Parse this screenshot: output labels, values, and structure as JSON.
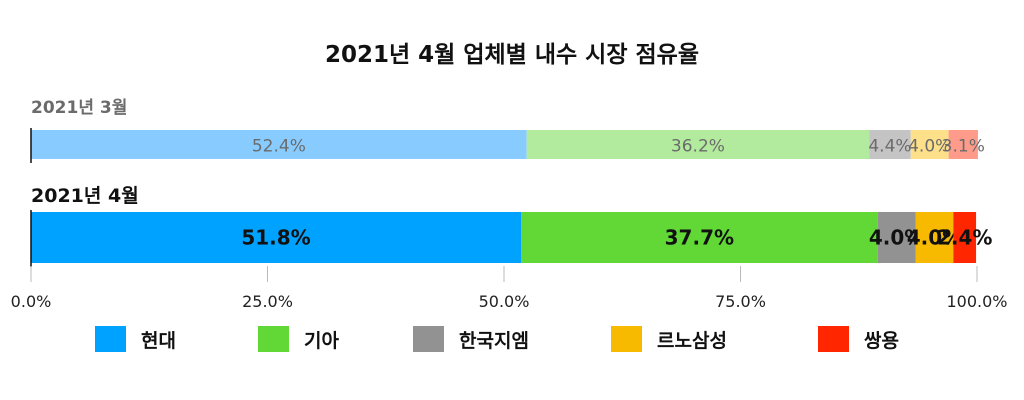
{
  "chart_data": {
    "type": "bar",
    "orientation": "horizontal",
    "stacked": true,
    "title": "2021년 4월 업체별 내수 시장 점유율",
    "categories": [
      "2021년 3월",
      "2021년 4월"
    ],
    "series": [
      {
        "name": "현대",
        "values": [
          52.4,
          51.8
        ],
        "labels": [
          "52.4%",
          "51.8%"
        ],
        "colors": [
          "#88CCFF",
          "#00A2FF"
        ]
      },
      {
        "name": "기아",
        "values": [
          36.2,
          37.7
        ],
        "labels": [
          "36.2%",
          "37.7%"
        ],
        "colors": [
          "#B3EB9E",
          "#61D836"
        ]
      },
      {
        "name": "한국지엠",
        "values": [
          4.4,
          4.0
        ],
        "labels": [
          "4.4%",
          "4.0%"
        ],
        "colors": [
          "#C4C4C4",
          "#929292"
        ]
      },
      {
        "name": "르노삼성",
        "values": [
          4.0,
          4.0
        ],
        "labels": [
          "4.0%",
          "4.0%"
        ],
        "colors": [
          "#FFE08A",
          "#F8BA00"
        ]
      },
      {
        "name": "쌍용",
        "values": [
          3.1,
          2.4
        ],
        "labels": [
          "3.1%",
          "2.4%"
        ],
        "colors": [
          "#FF9B8A",
          "#FF2600"
        ]
      }
    ],
    "xlim": [
      0,
      100
    ],
    "xticks": [
      "0.0%",
      "25.0%",
      "50.0%",
      "75.0%",
      "100.0%"
    ],
    "grid": false,
    "legend_position": "bottom"
  }
}
